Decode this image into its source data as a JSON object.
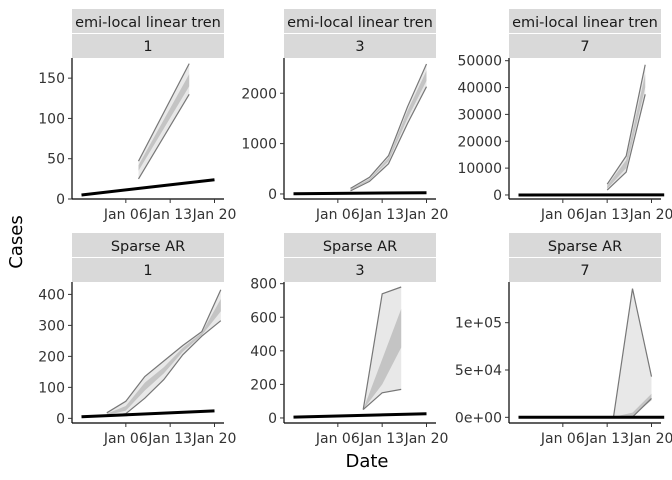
{
  "figure": {
    "xlabel": "Date",
    "ylabel": "Cases"
  },
  "chart_data": [
    {
      "type": "line",
      "strip": [
        "emi-local linear tren",
        "1"
      ],
      "ylim": [
        0,
        175
      ],
      "yticks": [
        0,
        50,
        100,
        150
      ],
      "ytick_labels": [
        "0",
        "50",
        "100",
        "150"
      ],
      "xticks": [
        "Jan 06",
        "Jan 13",
        "Jan 20"
      ],
      "actual": {
        "x": [
          "2020-12-30",
          "2021-01-20"
        ],
        "y": [
          5,
          24
        ]
      },
      "interval_outer": {
        "x": [
          "2021-01-08",
          "2021-01-16"
        ],
        "lower": [
          25,
          130
        ],
        "upper": [
          47,
          168
        ]
      },
      "interval_inner": {
        "x": [
          "2021-01-08",
          "2021-01-16"
        ],
        "lower": [
          35,
          140
        ],
        "upper": [
          42,
          155
        ]
      }
    },
    {
      "type": "line",
      "strip": [
        "emi-local linear tren",
        "3"
      ],
      "ylim": [
        -100,
        2700
      ],
      "yticks": [
        0,
        1000,
        2000
      ],
      "ytick_labels": [
        "0",
        "1000",
        "2000"
      ],
      "xticks": [
        "Jan 06",
        "Jan 13",
        "Jan 20"
      ],
      "actual": {
        "x": [
          "2020-12-30",
          "2021-01-20"
        ],
        "y": [
          5,
          25
        ]
      },
      "interval_outer": {
        "x": [
          "2021-01-08",
          "2021-01-11",
          "2021-01-14",
          "2021-01-17",
          "2021-01-20"
        ],
        "lower": [
          60,
          250,
          600,
          1400,
          2130
        ],
        "upper": [
          110,
          330,
          760,
          1730,
          2580
        ]
      },
      "interval_inner": {
        "x": [
          "2021-01-08",
          "2021-01-11",
          "2021-01-14",
          "2021-01-17",
          "2021-01-20"
        ],
        "lower": [
          75,
          270,
          650,
          1500,
          2250
        ],
        "upper": [
          95,
          300,
          720,
          1650,
          2450
        ]
      }
    },
    {
      "type": "line",
      "strip": [
        "emi-local linear tren",
        "7"
      ],
      "ylim": [
        -1500,
        51000
      ],
      "yticks": [
        0,
        10000,
        20000,
        30000,
        40000,
        50000
      ],
      "ytick_labels": [
        "0",
        "10000",
        "20000",
        "30000",
        "40000",
        "50000"
      ],
      "xticks": [
        "Jan 06",
        "Jan 13",
        "Jan 20"
      ],
      "actual": {
        "x": [
          "2020-12-30",
          "2021-01-22"
        ],
        "y": [
          5,
          25
        ]
      },
      "interval_outer": {
        "x": [
          "2021-01-13",
          "2021-01-16",
          "2021-01-19"
        ],
        "lower": [
          1800,
          8500,
          37500
        ],
        "upper": [
          4000,
          14500,
          48500
        ]
      },
      "interval_inner": {
        "x": [
          "2021-01-13",
          "2021-01-16",
          "2021-01-19"
        ],
        "lower": [
          2300,
          10000,
          40000
        ],
        "upper": [
          3400,
          13000,
          45000
        ]
      }
    },
    {
      "type": "line",
      "strip": [
        "Sparse AR",
        "1"
      ],
      "ylim": [
        -15,
        440
      ],
      "yticks": [
        0,
        100,
        200,
        300,
        400
      ],
      "ytick_labels": [
        "0",
        "100",
        "200",
        "300",
        "400"
      ],
      "xticks": [
        "Jan 06",
        "Jan 13",
        "Jan 20"
      ],
      "actual": {
        "x": [
          "2020-12-30",
          "2021-01-20"
        ],
        "y": [
          5,
          24
        ]
      },
      "interval_outer": {
        "x": [
          "2021-01-03",
          "2021-01-06",
          "2021-01-09",
          "2021-01-12",
          "2021-01-15",
          "2021-01-18",
          "2021-01-21"
        ],
        "lower": [
          8,
          15,
          65,
          125,
          205,
          265,
          315
        ],
        "upper": [
          18,
          55,
          135,
          185,
          235,
          280,
          415
        ]
      },
      "interval_inner": {
        "x": [
          "2021-01-03",
          "2021-01-06",
          "2021-01-09",
          "2021-01-12",
          "2021-01-15",
          "2021-01-18",
          "2021-01-21"
        ],
        "lower": [
          10,
          25,
          90,
          145,
          215,
          268,
          345
        ],
        "upper": [
          15,
          40,
          115,
          165,
          228,
          276,
          385
        ]
      }
    },
    {
      "type": "line",
      "strip": [
        "Sparse AR",
        "3"
      ],
      "ylim": [
        -30,
        810
      ],
      "yticks": [
        0,
        200,
        400,
        600,
        800
      ],
      "ytick_labels": [
        "0",
        "200",
        "400",
        "600",
        "800"
      ],
      "xticks": [
        "Jan 06",
        "Jan 13",
        "Jan 20"
      ],
      "actual": {
        "x": [
          "2020-12-30",
          "2021-01-20"
        ],
        "y": [
          5,
          25
        ]
      },
      "interval_outer": {
        "x": [
          "2021-01-10",
          "2021-01-13",
          "2021-01-16"
        ],
        "lower": [
          50,
          150,
          170
        ],
        "upper": [
          50,
          740,
          780
        ]
      },
      "interval_inner": {
        "x": [
          "2021-01-10",
          "2021-01-13",
          "2021-01-16"
        ],
        "lower": [
          50,
          200,
          420
        ],
        "upper": [
          50,
          350,
          650
        ]
      }
    },
    {
      "type": "line",
      "strip": [
        "Sparse AR",
        "7"
      ],
      "ylim": [
        -6000,
        143000
      ],
      "yticks": [
        0,
        50000,
        100000
      ],
      "ytick_labels": [
        "0e+00",
        "5e+04",
        "1e+05"
      ],
      "xticks": [
        "Jan 06",
        "Jan 13",
        "Jan 20"
      ],
      "actual": {
        "x": [
          "2020-12-30",
          "2021-01-22"
        ],
        "y": [
          5,
          25
        ]
      },
      "interval_outer": {
        "x": [
          "2021-01-14",
          "2021-01-17",
          "2021-01-20"
        ],
        "lower": [
          200,
          300,
          20000
        ],
        "upper": [
          300,
          136000,
          43000
        ]
      },
      "interval_inner": {
        "x": [
          "2021-01-14",
          "2021-01-17",
          "2021-01-20"
        ],
        "lower": [
          200,
          1000,
          18000
        ],
        "upper": [
          300,
          5000,
          25000
        ]
      }
    }
  ]
}
